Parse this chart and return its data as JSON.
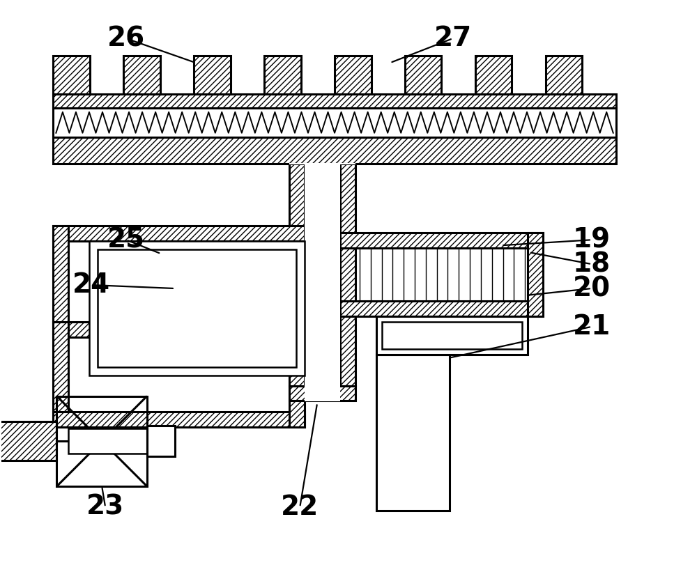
{
  "bg_color": "#ffffff",
  "lc": "#000000",
  "lw": 1.8,
  "lw_thick": 2.2,
  "label_fs": 28,
  "figsize": [
    10.0,
    8.44
  ],
  "dpi": 100
}
